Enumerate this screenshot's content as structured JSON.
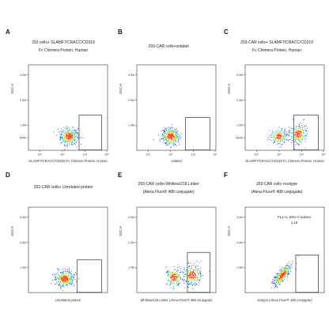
{
  "chart_data": [
    {
      "type": "scatter",
      "panel_label": "A",
      "title": [
        "293 cells+ SLAMF7/CRACC/CD319",
        "Fc Chimera Protein, Human"
      ],
      "xlabel": "SLAMF7/CRACC/CD319 Fc Chimera Protein, Human",
      "ylabel": "SSC-A",
      "xscale": "log",
      "xlim": [
        0.1,
        1000000
      ],
      "yticks": [
        "1.0M",
        "2.0M",
        "3.0M",
        "500K"
      ],
      "xticks": [
        "10⁰",
        "10²",
        "10⁴",
        "10⁶"
      ],
      "ylim": [
        0,
        3400000
      ],
      "gate": {
        "x": [
          3000,
          300000
        ],
        "y": [
          0,
          1400000
        ]
      },
      "gate_label": [],
      "populations": [
        {
          "center": [
            2.6,
            550000
          ],
          "spread": [
            0.38,
            160000
          ],
          "count": 420
        }
      ]
    },
    {
      "type": "scatter",
      "panel_label": "B",
      "title": [
        "293-CAR cells+unlabel"
      ],
      "xlabel": "unlabel",
      "ylabel": "SSC-A",
      "xscale": "log",
      "xlim": [
        0.1,
        1000000
      ],
      "yticks": [
        "1.0M",
        "2.0M",
        "3.0M"
      ],
      "xticks": [
        "10⁰",
        "10²",
        "10⁴",
        "10⁶"
      ],
      "ylim": [
        0,
        3400000
      ],
      "gate": {
        "x": [
          2000,
          300000
        ],
        "y": [
          0,
          1300000
        ]
      },
      "gate_label": [],
      "populations": [
        {
          "center": [
            2.0,
            550000
          ],
          "spread": [
            0.38,
            150000
          ],
          "count": 420
        }
      ]
    },
    {
      "type": "scatter",
      "panel_label": "C",
      "title": [
        "293-CAR cells+ SLAMF7/CRACC/CD319",
        "Fc Chimera Protein, Human"
      ],
      "xlabel": "SLAMF7/CRACC/CD319 Fc Chimera Protein, Human",
      "ylabel": "SSC-A",
      "xscale": "log",
      "xlim": [
        0.1,
        1000000
      ],
      "yticks": [
        "1.0M",
        "2.0M",
        "3.0M",
        "500K"
      ],
      "xticks": [
        "10⁰",
        "10²",
        "10⁴",
        "10⁶"
      ],
      "ylim": [
        0,
        3400000
      ],
      "gate": {
        "x": [
          2000,
          300000
        ],
        "y": [
          0,
          1400000
        ]
      },
      "gate_label": [],
      "populations": [
        {
          "center": [
            2.0,
            550000
          ],
          "spread": [
            0.32,
            140000
          ],
          "count": 230
        },
        {
          "center": [
            3.7,
            650000
          ],
          "spread": [
            0.38,
            170000
          ],
          "count": 280
        }
      ]
    },
    {
      "type": "scatter",
      "panel_label": "D",
      "title": [
        "293-CAR cells+ Unrelated protein"
      ],
      "xlabel": "Unrelated protein",
      "ylabel": "SSC-A",
      "xscale": "log",
      "xlim": [
        0.1,
        1000000
      ],
      "yticks": [
        "1.0M",
        "2.0M",
        "3.0M"
      ],
      "xticks": [],
      "ylim": [
        0,
        3400000
      ],
      "gate": {
        "x": [
          2000,
          300000
        ],
        "y": [
          0,
          1300000
        ]
      },
      "gate_label": [],
      "populations": [
        {
          "center": [
            2.2,
            550000
          ],
          "spread": [
            0.4,
            150000
          ],
          "count": 420
        }
      ]
    },
    {
      "type": "scatter",
      "panel_label": "E",
      "title": [
        "293-CAR cells+Whitlow/218 Linker",
        "(Alexa Fluor® 488 conjugate)"
      ],
      "xlabel": "Whitlow/218 Linker (Alexa Fluor® 488 conjugate)",
      "ylabel": "SSC-A",
      "xscale": "log",
      "xlim": [
        0.1,
        1000000
      ],
      "yticks": [
        "1.0M",
        "2.0M",
        "3.0M"
      ],
      "xticks": [],
      "ylim": [
        0,
        3400000
      ],
      "gate": {
        "x": [
          3000,
          300000
        ],
        "y": [
          0,
          1600000
        ]
      },
      "gate_label": [],
      "populations": [
        {
          "center": [
            2.3,
            600000
          ],
          "spread": [
            0.35,
            170000
          ],
          "count": 240
        },
        {
          "center": [
            3.9,
            700000
          ],
          "spread": [
            0.4,
            190000
          ],
          "count": 300
        }
      ]
    },
    {
      "type": "scatter",
      "panel_label": "F",
      "title": [
        "293-CAR cells +isotype",
        "(Alexa Fluor® 488 conjugate)"
      ],
      "xlabel": "Isotype (Alexa Fluor® 488 conjugate)",
      "ylabel": "SSC-A",
      "xscale": "log",
      "xlim": [
        0.1,
        1000000
      ],
      "yticks": [
        "1.0M",
        "2.0M",
        "3.0M"
      ],
      "xticks": [],
      "ylim": [
        0,
        3400000
      ],
      "gate": {
        "x": [
          3000,
          300000
        ],
        "y": [
          0,
          1500000
        ]
      },
      "gate_label": [
        "FL1-A, SSC-A subset",
        "1.19"
      ],
      "populations": [
        {
          "center": [
            2.3,
            700000
          ],
          "spread": [
            0.38,
            200000
          ],
          "count": 420,
          "diagonal": true
        }
      ]
    }
  ],
  "colors": {
    "density_low": "#1d3fb8",
    "density_mid1": "#26c6da",
    "density_mid2": "#7ed957",
    "density_high": "#f7d21b",
    "density_peak": "#f44336"
  }
}
